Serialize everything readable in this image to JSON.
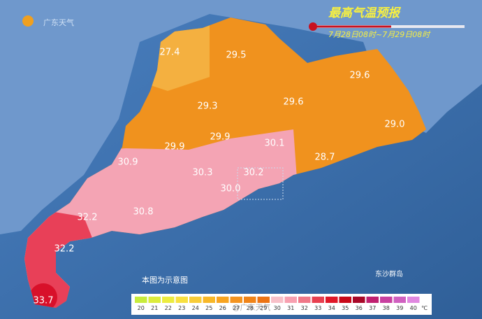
{
  "header": {
    "logo": "广东天气",
    "title": "最高气温预报",
    "period": "7月28日08时~7月29日08时"
  },
  "map": {
    "labels": [
      "27.4",
      "29.5",
      "29.6",
      "29.3",
      "29.6",
      "29.0",
      "29.9",
      "29.9",
      "30.1",
      "28.7",
      "30.9",
      "30.3",
      "30.2",
      "30.0",
      "32.2",
      "30.8",
      "32.2",
      "33.7"
    ],
    "island": "东沙群岛",
    "note": "本图为示意图",
    "watermark": "@广东天气"
  },
  "legend": {
    "ticks": [
      "20",
      "21",
      "22",
      "23",
      "24",
      "25",
      "26",
      "27",
      "28",
      "29",
      "30",
      "31",
      "32",
      "33",
      "34",
      "35",
      "36",
      "37",
      "38",
      "39",
      "40"
    ],
    "colors": [
      "#c8ec3c",
      "#dcec3c",
      "#ecec40",
      "#f8e040",
      "#f8cc38",
      "#f8b828",
      "#f8a420",
      "#f49420",
      "#f08418",
      "#ec7414",
      "#f8c0c8",
      "#f8a0b0",
      "#f07888",
      "#e84050",
      "#e01828",
      "#c80818",
      "#a80828",
      "#c02070",
      "#c840a0",
      "#d060c0",
      "#e088e0"
    ],
    "unit": "℃"
  }
}
